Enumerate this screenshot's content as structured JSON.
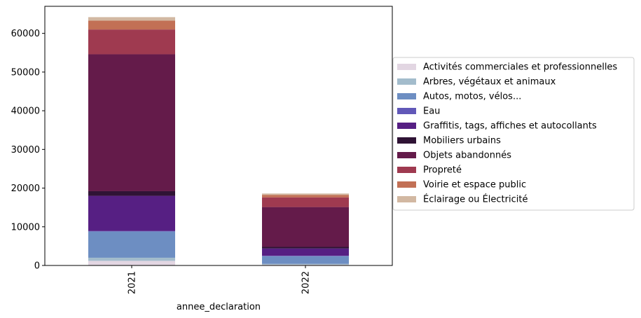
{
  "chart_data": {
    "type": "bar",
    "stacked": true,
    "categories": [
      "2021",
      "2022"
    ],
    "xlabel": "annee_declaration",
    "ylabel": "",
    "ylim": [
      0,
      67000
    ],
    "yticks": [
      0,
      10000,
      20000,
      30000,
      40000,
      50000,
      60000
    ],
    "grid": false,
    "legend_position": "right",
    "series": [
      {
        "name": "Activités commerciales et professionnelles",
        "color": "#e2d6e2",
        "values": [
          1200,
          200
        ]
      },
      {
        "name": "Arbres, végétaux et animaux",
        "color": "#a3bccc",
        "values": [
          800,
          200
        ]
      },
      {
        "name": "Autos, motos, vélos...",
        "color": "#6d8ec2",
        "values": [
          6800,
          2000
        ]
      },
      {
        "name": "Eau",
        "color": "#6158b8",
        "values": [
          100,
          100
        ]
      },
      {
        "name": "Graffitis, tags, affiches et autocollants",
        "color": "#561f83",
        "values": [
          9100,
          1900
        ]
      },
      {
        "name": "Mobiliers urbains",
        "color": "#2f1335",
        "values": [
          1200,
          400
        ]
      },
      {
        "name": "Objets abandonnés",
        "color": "#641b4a",
        "values": [
          35400,
          10300
        ]
      },
      {
        "name": "Propreté",
        "color": "#9f3a50",
        "values": [
          6400,
          2500
        ]
      },
      {
        "name": "Voirie et espace public",
        "color": "#c27055",
        "values": [
          2300,
          600
        ]
      },
      {
        "name": "Éclairage ou Électricité",
        "color": "#d2b8a2",
        "values": [
          900,
          400
        ]
      }
    ]
  }
}
